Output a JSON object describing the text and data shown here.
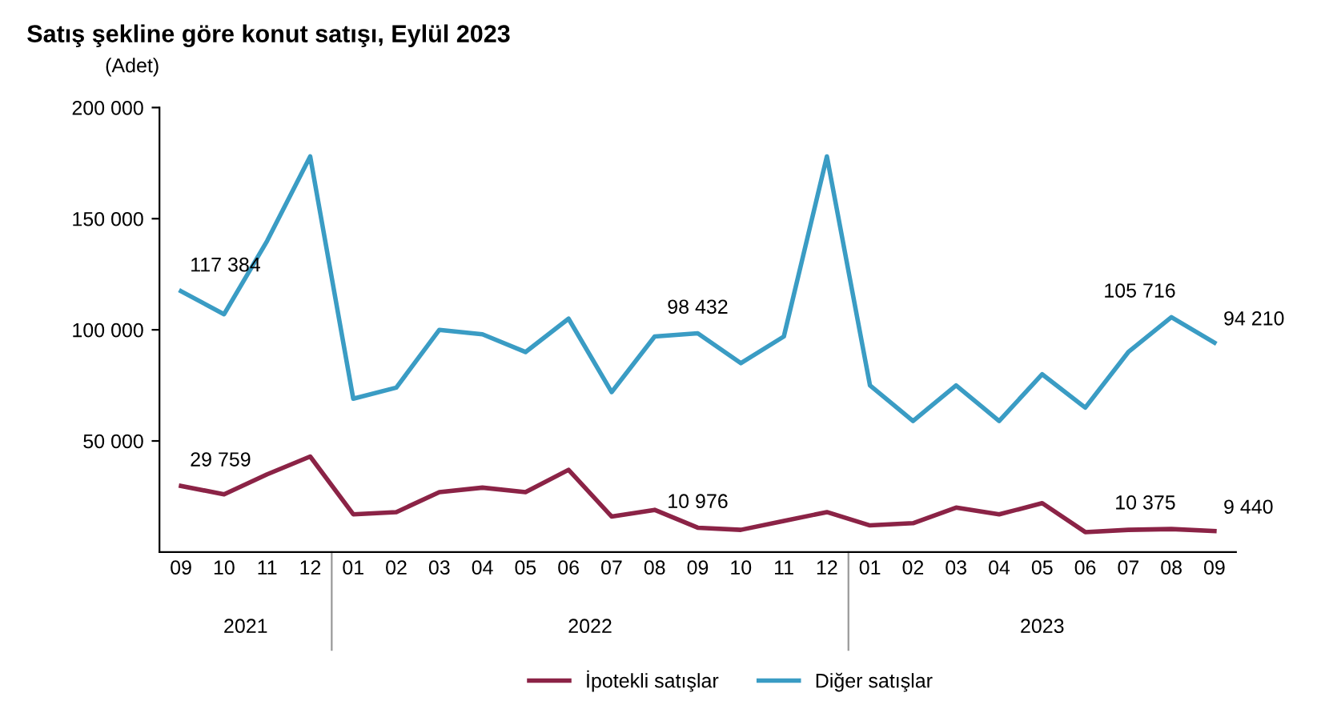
{
  "chart_data": {
    "type": "line",
    "title": "Satış şekline göre konut satışı, Eylül 2023",
    "ylabel": "(Adet)",
    "categories": [
      "09",
      "10",
      "11",
      "12",
      "01",
      "02",
      "03",
      "04",
      "05",
      "06",
      "07",
      "08",
      "09",
      "10",
      "11",
      "12",
      "01",
      "02",
      "03",
      "04",
      "05",
      "06",
      "07",
      "08",
      "09"
    ],
    "annotations": [
      "2021",
      "2022",
      "2023"
    ],
    "series": [
      {
        "name": "İpotekli satışlar",
        "color": "#8b2346",
        "values": [
          29759,
          26000,
          35000,
          43000,
          17000,
          18000,
          27000,
          29000,
          27000,
          37000,
          16000,
          19000,
          10976,
          10000,
          14000,
          18000,
          12000,
          13000,
          20000,
          17000,
          22000,
          9000,
          10000,
          10375,
          9440
        ],
        "value_labels": [
          "29 759",
          null,
          null,
          null,
          null,
          null,
          null,
          null,
          null,
          null,
          null,
          null,
          "10 976",
          null,
          null,
          null,
          null,
          null,
          null,
          null,
          null,
          null,
          null,
          "10 375",
          "9 440"
        ]
      },
      {
        "name": "Diğer satışlar",
        "color": "#3a9cc4",
        "values": [
          117384,
          107000,
          140000,
          178000,
          69000,
          74000,
          100000,
          98000,
          90000,
          105000,
          72000,
          97000,
          98432,
          85000,
          97000,
          178000,
          75000,
          59000,
          75000,
          59000,
          80000,
          65000,
          90000,
          105716,
          94210
        ],
        "value_labels": [
          "117 384",
          null,
          null,
          null,
          null,
          null,
          null,
          null,
          null,
          null,
          null,
          null,
          "98 432",
          null,
          null,
          null,
          null,
          null,
          null,
          null,
          null,
          null,
          null,
          "105 716",
          "94 210"
        ]
      }
    ],
    "ylim": [
      0,
      200000
    ],
    "yticks": [
      {
        "value": 50000,
        "label": "50 000"
      },
      {
        "value": 100000,
        "label": "100 000"
      },
      {
        "value": 150000,
        "label": "150 000"
      },
      {
        "value": 200000,
        "label": "200 000"
      }
    ],
    "grid": false,
    "legend": "bottom"
  }
}
